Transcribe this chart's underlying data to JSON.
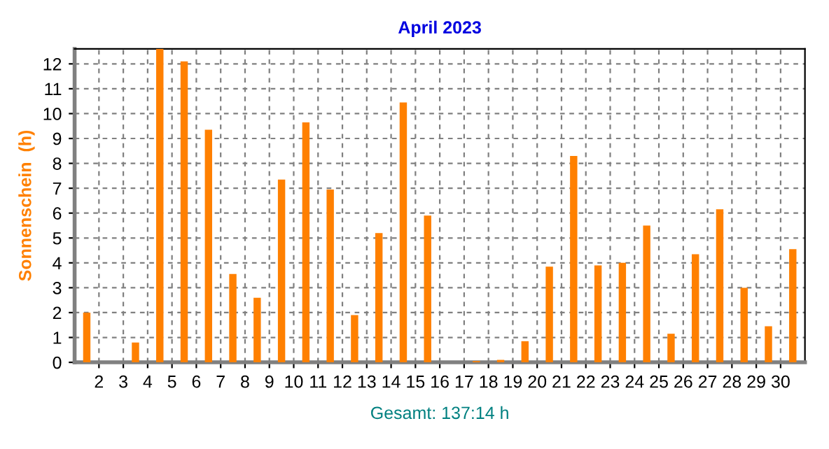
{
  "chart_data": {
    "type": "bar",
    "title": "April 2023",
    "ylabel": "Sonnenschein  (h)",
    "x": [
      1,
      2,
      3,
      4,
      5,
      6,
      7,
      8,
      9,
      10,
      11,
      12,
      13,
      14,
      15,
      16,
      17,
      18,
      19,
      20,
      21,
      22,
      23,
      24,
      25,
      26,
      27,
      28,
      29,
      30
    ],
    "series": [
      {
        "color": "#ff8000",
        "values": [
          2.0,
          0,
          0.8,
          12.6,
          12.1,
          9.35,
          3.55,
          2.6,
          7.35,
          9.65,
          6.95,
          1.9,
          5.2,
          10.45,
          5.9,
          0,
          0.05,
          0.1,
          0.85,
          3.85,
          8.3,
          3.9,
          4.0,
          5.5,
          1.15,
          4.35,
          6.15,
          3.0,
          1.45,
          4.55
        ]
      }
    ],
    "xlim": [
      0.5,
      30.5
    ],
    "xticks": [
      {
        "value": 1.5,
        "label": "2"
      },
      {
        "value": 2.5,
        "label": "3"
      },
      {
        "value": 3.5,
        "label": "4"
      },
      {
        "value": 4.5,
        "label": "5"
      },
      {
        "value": 5.5,
        "label": "6"
      },
      {
        "value": 6.5,
        "label": "7"
      },
      {
        "value": 7.5,
        "label": "8"
      },
      {
        "value": 8.5,
        "label": "9"
      },
      {
        "value": 9.5,
        "label": "10"
      },
      {
        "value": 10.5,
        "label": "11"
      },
      {
        "value": 11.5,
        "label": "12"
      },
      {
        "value": 12.5,
        "label": "13"
      },
      {
        "value": 13.5,
        "label": "14"
      },
      {
        "value": 14.5,
        "label": "15"
      },
      {
        "value": 15.5,
        "label": "16"
      },
      {
        "value": 16.5,
        "label": "17"
      },
      {
        "value": 17.5,
        "label": "18"
      },
      {
        "value": 18.5,
        "label": "19"
      },
      {
        "value": 19.5,
        "label": "20"
      },
      {
        "value": 20.5,
        "label": "21"
      },
      {
        "value": 21.5,
        "label": "22"
      },
      {
        "value": 22.5,
        "label": "23"
      },
      {
        "value": 23.5,
        "label": "24"
      },
      {
        "value": 24.5,
        "label": "25"
      },
      {
        "value": 25.5,
        "label": "26"
      },
      {
        "value": 26.5,
        "label": "27"
      },
      {
        "value": 27.5,
        "label": "28"
      },
      {
        "value": 28.5,
        "label": "29"
      },
      {
        "value": 29.5,
        "label": "30"
      }
    ],
    "ylim": [
      0,
      12.6
    ],
    "yticks": [
      0,
      1,
      2,
      3,
      4,
      5,
      6,
      7,
      8,
      9,
      10,
      11,
      12
    ],
    "grid": true,
    "legend": false,
    "annotations": [
      "Gesamt: 137:14 h"
    ]
  }
}
